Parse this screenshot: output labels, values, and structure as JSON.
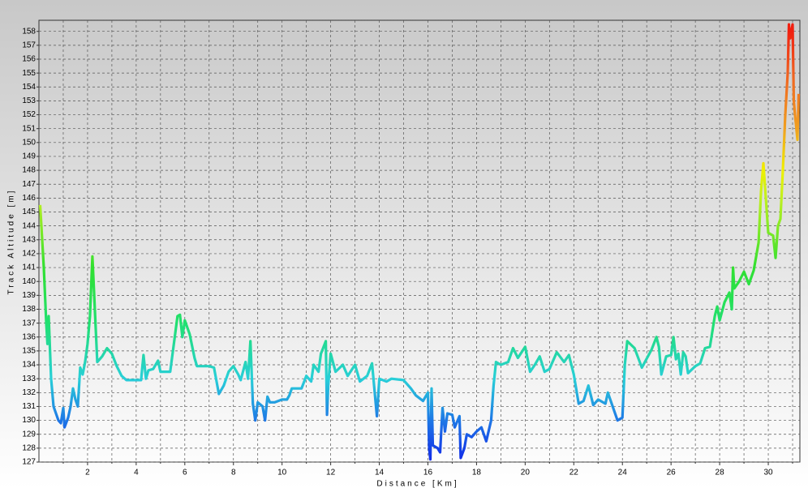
{
  "chart_data": {
    "type": "line",
    "xlabel": "Distance [Km]",
    "ylabel": "Track Altitude [m]",
    "xlim": [
      0,
      31.3
    ],
    "ylim": [
      127,
      158.8
    ],
    "xticks": [
      2,
      4,
      6,
      8,
      10,
      12,
      14,
      16,
      18,
      20,
      22,
      24,
      26,
      28,
      30
    ],
    "xminorticks": [
      1,
      3,
      5,
      7,
      9,
      11,
      13,
      15,
      17,
      19,
      21,
      23,
      25,
      27,
      29,
      31
    ],
    "yticks": [
      127,
      128,
      129,
      130,
      131,
      132,
      133,
      134,
      135,
      136,
      137,
      138,
      139,
      140,
      141,
      142,
      143,
      144,
      145,
      146,
      147,
      148,
      149,
      150,
      151,
      152,
      153,
      154,
      155,
      156,
      157,
      158
    ],
    "grid": true,
    "colorscale": [
      [
        127,
        "#1028e8"
      ],
      [
        130,
        "#1e78e6"
      ],
      [
        133,
        "#28cfd8"
      ],
      [
        137,
        "#20e070"
      ],
      [
        141,
        "#30e030"
      ],
      [
        146,
        "#c0f020"
      ],
      [
        148,
        "#f0f000"
      ],
      [
        151,
        "#f0a020"
      ],
      [
        155,
        "#f06020"
      ],
      [
        158,
        "#f02010"
      ]
    ],
    "series": [
      {
        "name": "Track Altitude",
        "x": [
          0.05,
          0.1,
          0.2,
          0.3,
          0.35,
          0.4,
          0.5,
          0.6,
          0.7,
          0.8,
          0.9,
          1.0,
          1.05,
          1.2,
          1.3,
          1.4,
          1.5,
          1.6,
          1.7,
          1.8,
          1.9,
          2.0,
          2.1,
          2.2,
          2.3,
          2.4,
          2.6,
          2.8,
          3.0,
          3.2,
          3.4,
          3.6,
          4.0,
          4.2,
          4.3,
          4.4,
          4.5,
          4.7,
          4.9,
          5.0,
          5.4,
          5.7,
          5.8,
          5.9,
          6.0,
          6.2,
          6.4,
          6.5,
          7.0,
          7.2,
          7.4,
          7.6,
          7.8,
          8.0,
          8.2,
          8.3,
          8.5,
          8.6,
          8.7,
          8.8,
          8.9,
          9.0,
          9.2,
          9.3,
          9.4,
          9.5,
          9.7,
          10.0,
          10.2,
          10.3,
          10.4,
          10.8,
          11.0,
          11.2,
          11.3,
          11.5,
          11.6,
          11.8,
          11.85,
          11.9,
          12.0,
          12.2,
          12.5,
          12.7,
          13.0,
          13.2,
          13.5,
          13.7,
          13.9,
          14.0,
          14.3,
          14.5,
          15.0,
          15.3,
          15.5,
          15.8,
          16.0,
          16.05,
          16.1,
          16.15,
          16.2,
          16.4,
          16.5,
          16.6,
          16.7,
          16.8,
          17.0,
          17.1,
          17.3,
          17.35,
          17.5,
          17.6,
          17.8,
          18.0,
          18.2,
          18.4,
          18.6,
          18.7,
          18.8,
          19.0,
          19.3,
          19.5,
          19.7,
          20.0,
          20.2,
          20.4,
          20.6,
          20.8,
          21.0,
          21.3,
          21.6,
          21.8,
          22.0,
          22.2,
          22.4,
          22.6,
          22.8,
          23.0,
          23.3,
          23.4,
          23.6,
          23.8,
          24.0,
          24.1,
          24.2,
          24.5,
          24.8,
          25.2,
          25.4,
          25.5,
          25.6,
          25.8,
          26.0,
          26.1,
          26.2,
          26.3,
          26.4,
          26.5,
          26.6,
          26.7,
          27.0,
          27.2,
          27.4,
          27.6,
          27.8,
          27.9,
          28.0,
          28.2,
          28.4,
          28.5,
          28.55,
          28.6,
          28.8,
          29.0,
          29.2,
          29.4,
          29.6,
          29.7,
          29.8,
          29.9,
          30.0,
          30.2,
          30.3,
          30.4,
          30.5,
          30.6,
          30.7,
          30.8,
          30.85,
          30.9,
          31.0,
          31.05,
          31.1,
          31.2,
          31.25
        ],
        "values": [
          145.5,
          144,
          141,
          137,
          135.5,
          137.5,
          133,
          131,
          130.5,
          130,
          129.8,
          130.9,
          129.5,
          130.2,
          131,
          132.3,
          131.5,
          131,
          133.8,
          133.3,
          134.2,
          135.5,
          137.5,
          141.8,
          138,
          134.2,
          134.6,
          135.2,
          134.8,
          133.9,
          133.2,
          132.9,
          132.9,
          132.9,
          134.7,
          133,
          133.6,
          133.7,
          134.3,
          133.5,
          133.5,
          137.5,
          137.6,
          136,
          137.2,
          136.2,
          134.5,
          133.9,
          133.9,
          133.8,
          131.9,
          132.5,
          133.5,
          133.9,
          133.3,
          132.9,
          134.2,
          133,
          135.7,
          131.2,
          130,
          131.3,
          131,
          130,
          131.7,
          131.3,
          131.3,
          131.5,
          131.5,
          131.8,
          132.3,
          132.3,
          133.2,
          132.8,
          134,
          133.5,
          134.8,
          135.7,
          130.4,
          132.5,
          134.8,
          133.5,
          134,
          133.2,
          134,
          132.8,
          133.2,
          134.1,
          130.3,
          133,
          132.8,
          133,
          132.9,
          132.3,
          131.8,
          131.4,
          132,
          128,
          127.2,
          132.3,
          128.2,
          128,
          127.7,
          130.9,
          129.2,
          130.5,
          130.4,
          129.5,
          130.3,
          127.3,
          128,
          129,
          128.8,
          129.2,
          129.5,
          128.5,
          130,
          132.5,
          134.2,
          134,
          134.2,
          135.2,
          134.5,
          135.3,
          133.5,
          134,
          134.6,
          133.5,
          133.7,
          134.9,
          134.2,
          134.7,
          133.3,
          131.2,
          131.4,
          132.5,
          131.1,
          131.5,
          131.2,
          132,
          131,
          130,
          130.2,
          134,
          135.7,
          135.2,
          133.8,
          135.1,
          136,
          135.3,
          133.3,
          134.6,
          134.7,
          136,
          134.4,
          134.8,
          133.3,
          134.9,
          134.6,
          133.4,
          133.9,
          134.1,
          135.2,
          135.3,
          137.5,
          138.2,
          137.2,
          138.5,
          139.2,
          138,
          141,
          139.5,
          140,
          140.7,
          139.8,
          140.8,
          142.8,
          146.5,
          148.5,
          146,
          143.5,
          143.3,
          141.7,
          144,
          144.5,
          148,
          152,
          155,
          158.5,
          157.5,
          158.5,
          153,
          152,
          150.2,
          153.5
        ]
      }
    ]
  }
}
